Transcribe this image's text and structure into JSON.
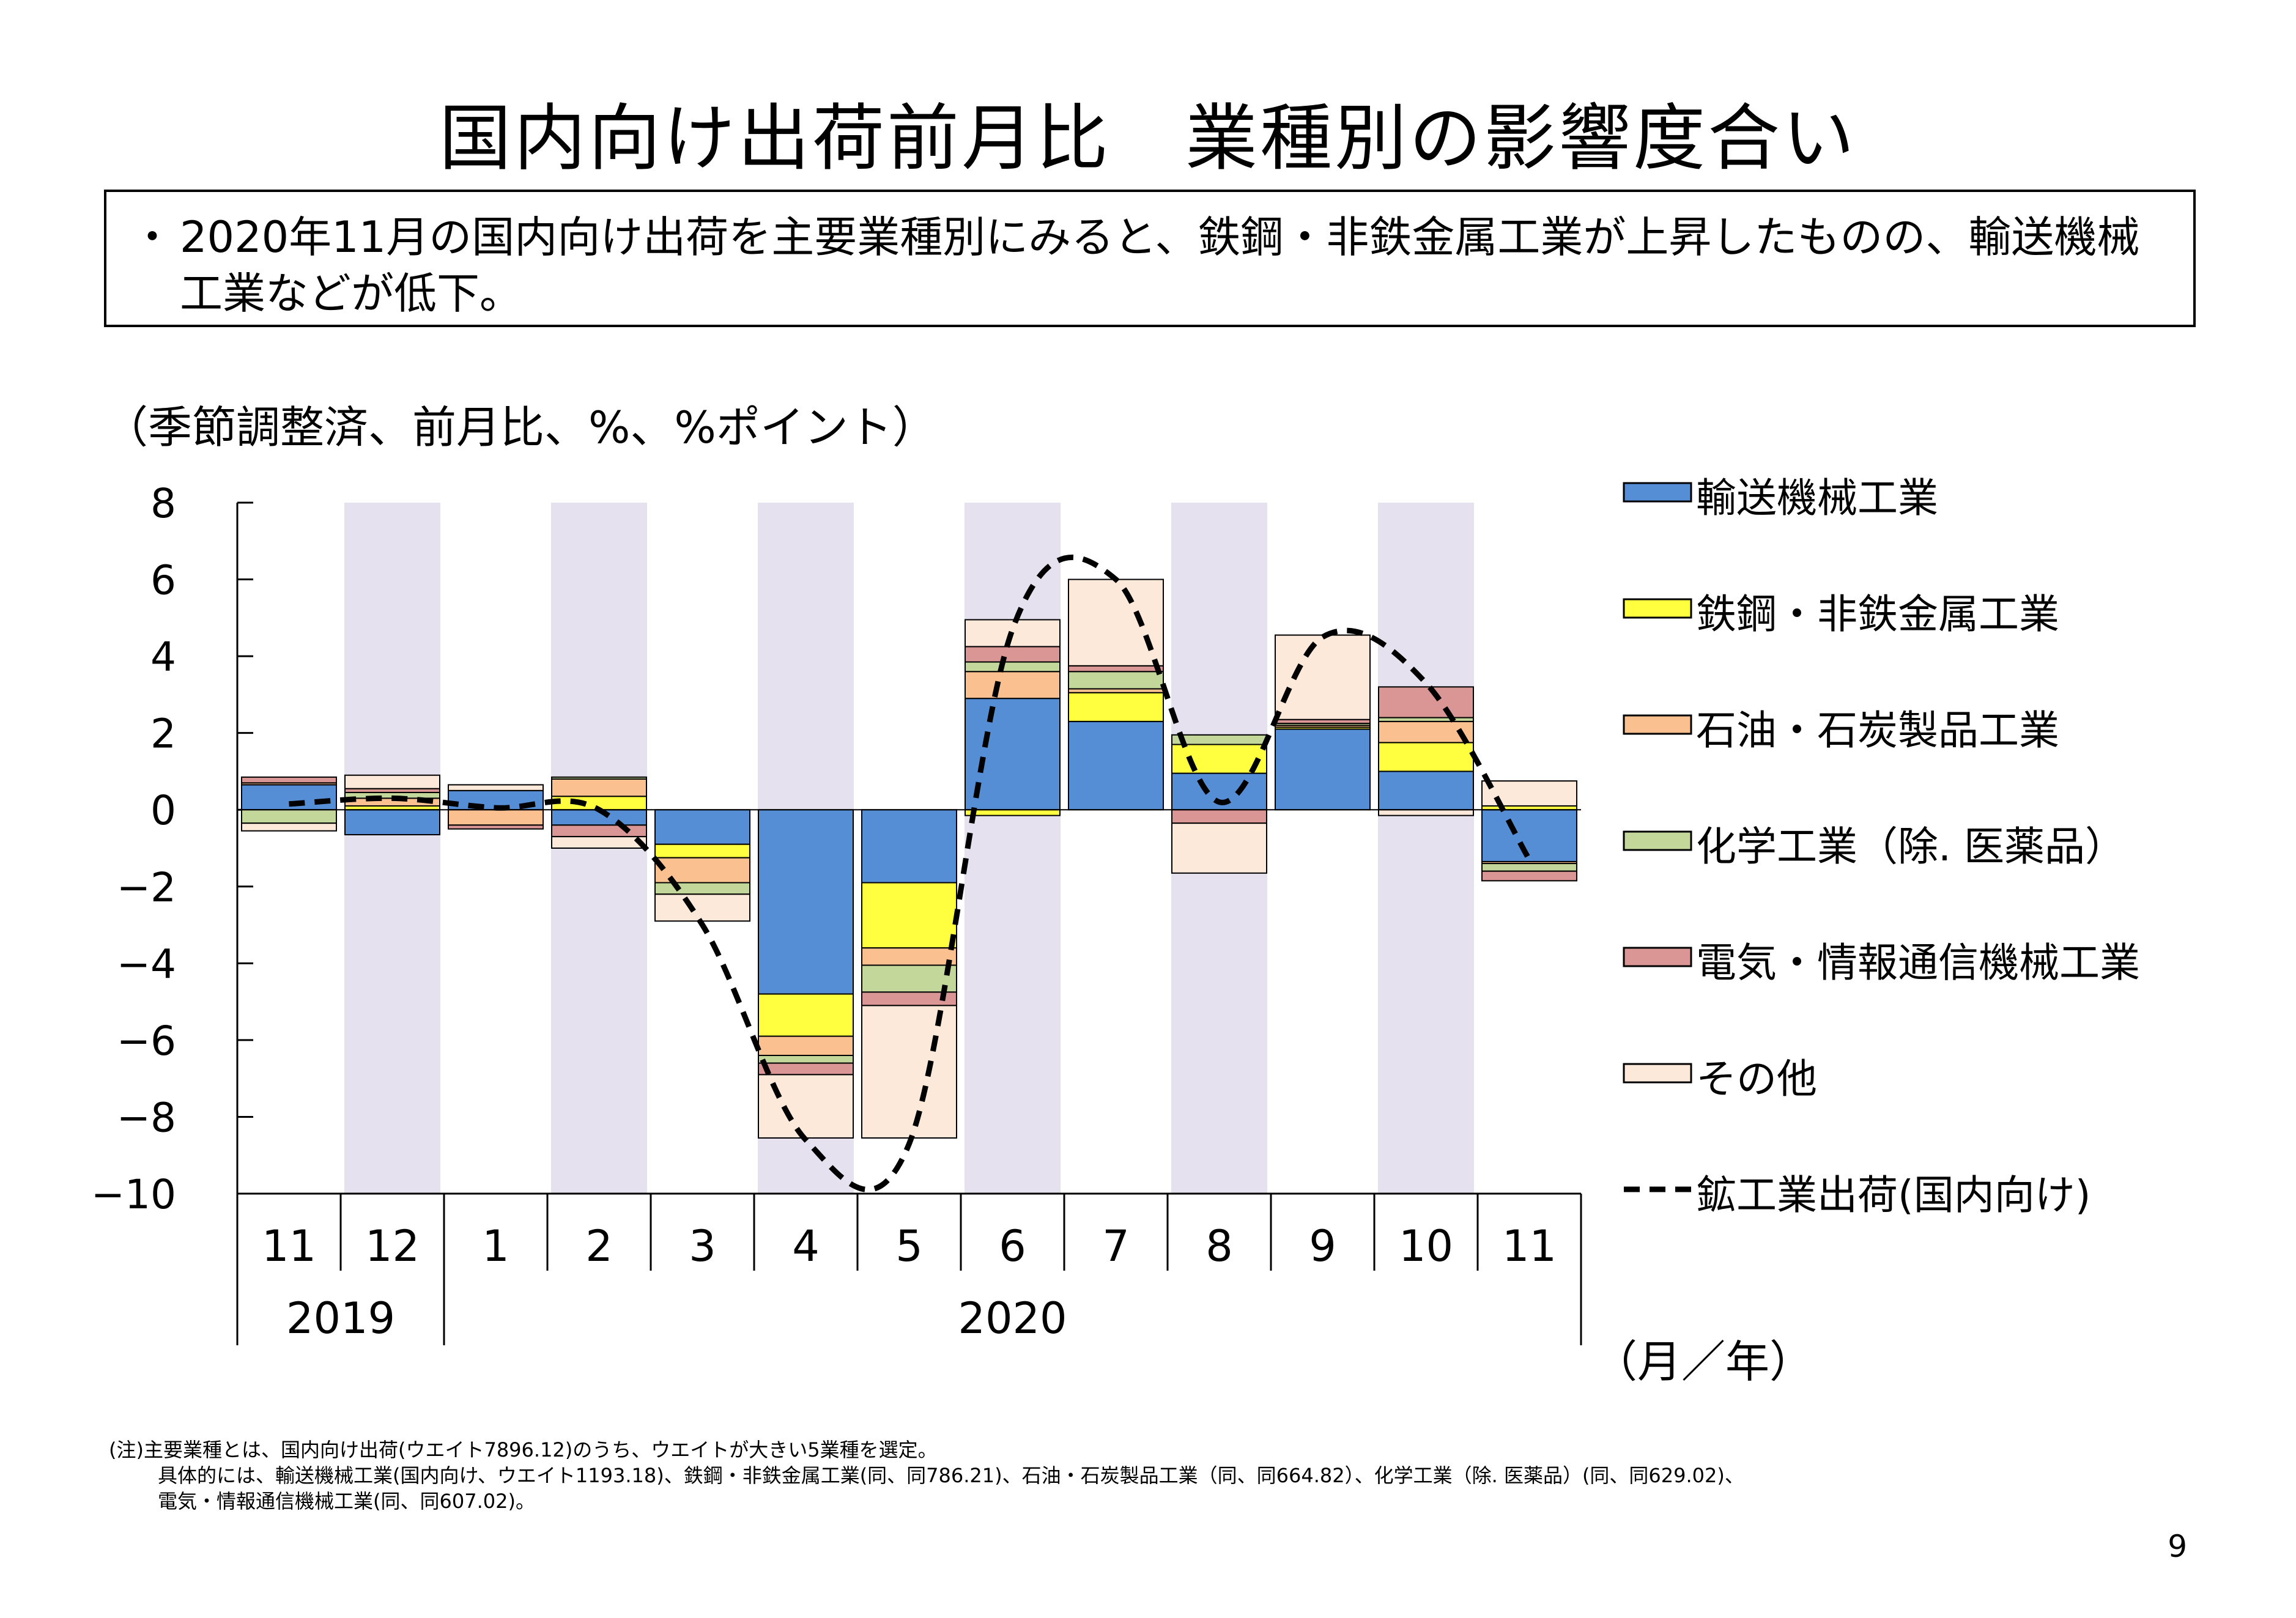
{
  "title": "国内向け出荷前月比　業種別の影響度合い",
  "summary": {
    "bullet": "・",
    "text": "2020年11月の国内向け出荷を主要業種別にみると、鉄鋼・非鉄金属工業が上昇したものの、輸送機械工業などが低下。"
  },
  "units_note": "（季節調整済、前月比、%、%ポイント）",
  "footnote": {
    "line1": "(注)主要業種とは、国内向け出荷(ウエイト7896.12)のうち、ウエイトが大きい5業種を選定。",
    "line2": "具体的には、輸送機械工業(国内向け、ウエイト1193.18)、鉄鋼・非鉄金属工業(同、同786.21)、石油・石炭製品工業（同、同664.82）、化学工業（除. 医薬品）(同、同629.02)、",
    "line3": "電気・情報通信機械工業(同、同607.02)。"
  },
  "page_number": "9",
  "chart_data": {
    "type": "bar",
    "stacked": true,
    "categories": [
      "11",
      "12",
      "1",
      "2",
      "3",
      "4",
      "5",
      "6",
      "7",
      "8",
      "9",
      "10",
      "11"
    ],
    "year_labels": [
      {
        "label": "2019",
        "from": 0,
        "to": 1
      },
      {
        "label": "2020",
        "from": 2,
        "to": 12
      }
    ],
    "x_unit_label": "（月／年）",
    "ylim": [
      -10,
      8
    ],
    "yticks": [
      8,
      6,
      4,
      2,
      0,
      -2,
      -4,
      -6,
      -8,
      -10
    ],
    "ytick_labels": [
      "8",
      "6",
      "4",
      "2",
      "0",
      "−2",
      "−4",
      "−6",
      "−8",
      "−10"
    ],
    "shaded_categories": [
      1,
      3,
      5,
      7,
      9,
      11
    ],
    "shade_color": "#e6e1ee",
    "legend_position": "right",
    "series": [
      {
        "name": "輸送機械工業",
        "color": "#558ed5",
        "values": [
          0.65,
          -0.65,
          0.5,
          -0.4,
          -0.9,
          -4.8,
          -1.9,
          2.9,
          2.3,
          0.95,
          2.1,
          1.0,
          -1.35
        ]
      },
      {
        "name": "鉄鋼・非鉄金属工業",
        "color": "#ffff40",
        "values": [
          0.0,
          0.1,
          0.0,
          0.35,
          -0.35,
          -1.1,
          -1.7,
          -0.15,
          0.75,
          0.75,
          0.05,
          0.75,
          0.1
        ]
      },
      {
        "name": "石油・石炭製品工業",
        "color": "#fac090",
        "values": [
          0.05,
          0.2,
          -0.4,
          0.45,
          -0.65,
          -0.5,
          -0.45,
          0.7,
          0.1,
          0.0,
          0.05,
          0.55,
          -0.05
        ]
      },
      {
        "name": "化学工業（除. 医薬品）",
        "color": "#c4d79b",
        "values": [
          -0.35,
          0.15,
          0.0,
          0.05,
          -0.3,
          -0.2,
          -0.7,
          0.25,
          0.45,
          0.25,
          0.05,
          0.1,
          -0.2
        ]
      },
      {
        "name": "電気・情報通信機械工業",
        "color": "#d99694",
        "values": [
          0.15,
          0.1,
          -0.1,
          -0.3,
          0.0,
          -0.3,
          -0.35,
          0.4,
          0.15,
          -0.35,
          0.1,
          0.8,
          -0.25
        ]
      },
      {
        "name": "その他",
        "color": "#fde9d9",
        "values": [
          -0.2,
          0.35,
          0.15,
          -0.3,
          -0.7,
          -1.65,
          -3.45,
          0.7,
          2.25,
          -1.3,
          2.2,
          -0.15,
          0.65
        ]
      }
    ],
    "line": {
      "name": "鉱工業出荷(国内向け)",
      "values": [
        0.15,
        0.3,
        0.05,
        0.0,
        -3.0,
        -8.6,
        -8.7,
        4.7,
        6.0,
        0.2,
        4.5,
        3.3,
        -1.3
      ]
    }
  }
}
